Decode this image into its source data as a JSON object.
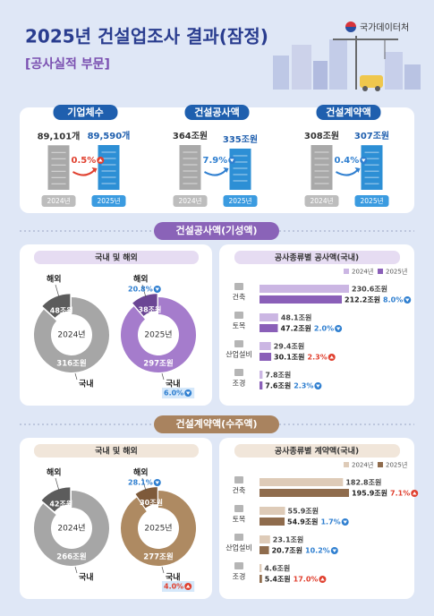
{
  "header": {
    "title": "2025년 건설업조사 결과(잠정)",
    "subtitle": "[공사실적 부문]",
    "agency": "국가데이터처"
  },
  "summary": [
    {
      "title": "기업체수",
      "years": [
        "2024년",
        "2025년"
      ],
      "values": [
        89101,
        89590
      ],
      "value_labels": [
        "89,101개",
        "89,590개"
      ],
      "change": "0.5%",
      "direction": "up"
    },
    {
      "title": "건설공사액",
      "years": [
        "2024년",
        "2025년"
      ],
      "values": [
        364,
        335
      ],
      "value_labels": [
        "364조원",
        "335조원"
      ],
      "change": "7.9%",
      "direction": "down"
    },
    {
      "title": "건설계약액",
      "years": [
        "2024년",
        "2025년"
      ],
      "values": [
        308,
        307
      ],
      "value_labels": [
        "308조원",
        "307조원"
      ],
      "change": "0.4%",
      "direction": "down"
    }
  ],
  "sections": [
    {
      "title": "건설공사액(기성액)",
      "theme": "#8a63b8",
      "light": "#e6dcf2",
      "donut": {
        "title": "국내 및 해외",
        "labels": [
          "해외",
          "국내"
        ],
        "colors": [
          [
            "#5c5c5c",
            "#a6a6a6"
          ],
          [
            "#6b4694",
            "#a57ccc"
          ]
        ],
        "years": [
          {
            "year": "2024년",
            "values": [
              48,
              316
            ],
            "value_labels": [
              "48조원",
              "316조원"
            ]
          },
          {
            "year": "2025년",
            "values": [
              38,
              297
            ],
            "value_labels": [
              "38조원",
              "297조원"
            ],
            "changes": [
              "20.8%",
              "6.0%"
            ],
            "directions": [
              "down",
              "down"
            ]
          }
        ]
      },
      "bars": {
        "title": "공사종류별 공사액(국내)",
        "categories": [
          "건축",
          "토목",
          "산업설비",
          "조경"
        ],
        "series": [
          {
            "name": "2024년",
            "color": "#cbb6e3",
            "values": [
              230.6,
              48.1,
              29.4,
              7.8
            ],
            "value_labels": [
              "230.6조원",
              "48.1조원",
              "29.4조원",
              "7.8조원"
            ]
          },
          {
            "name": "2025년",
            "color": "#8a5fb8",
            "values": [
              212.2,
              47.2,
              30.1,
              7.6
            ],
            "value_labels": [
              "212.2조원",
              "47.2조원",
              "30.1조원",
              "7.6조원"
            ],
            "changes": [
              "8.0%",
              "2.0%",
              "2.3%",
              "2.3%"
            ],
            "directions": [
              "down",
              "down",
              "up",
              "down"
            ]
          }
        ]
      }
    },
    {
      "title": "건설계약액(수주액)",
      "theme": "#a9835f",
      "light": "#f1e6da",
      "donut": {
        "title": "국내 및 해외",
        "labels": [
          "해외",
          "국내"
        ],
        "colors": [
          [
            "#5c5c5c",
            "#a6a6a6"
          ],
          [
            "#7e5a3a",
            "#ae8a62"
          ]
        ],
        "years": [
          {
            "year": "2024년",
            "values": [
              42,
              266
            ],
            "value_labels": [
              "42조원",
              "266조원"
            ]
          },
          {
            "year": "2025년",
            "values": [
              30,
              277
            ],
            "value_labels": [
              "30조원",
              "277조원"
            ],
            "changes": [
              "28.1%",
              "4.0%"
            ],
            "directions": [
              "down",
              "up"
            ]
          }
        ]
      },
      "bars": {
        "title": "공사종류별 계약액(국내)",
        "categories": [
          "건축",
          "토목",
          "산업설비",
          "조경"
        ],
        "series": [
          {
            "name": "2024년",
            "color": "#decbb8",
            "values": [
              182.8,
              55.9,
              23.1,
              4.6
            ],
            "value_labels": [
              "182.8조원",
              "55.9조원",
              "23.1조원",
              "4.6조원"
            ]
          },
          {
            "name": "2025년",
            "color": "#8f6c4d",
            "values": [
              195.9,
              54.9,
              20.7,
              5.4
            ],
            "value_labels": [
              "195.9조원",
              "54.9조원",
              "20.7조원",
              "5.4조원"
            ],
            "changes": [
              "7.1%",
              "1.7%",
              "10.2%",
              "17.0%"
            ],
            "directions": [
              "up",
              "down",
              "down",
              "up"
            ]
          }
        ]
      }
    }
  ]
}
